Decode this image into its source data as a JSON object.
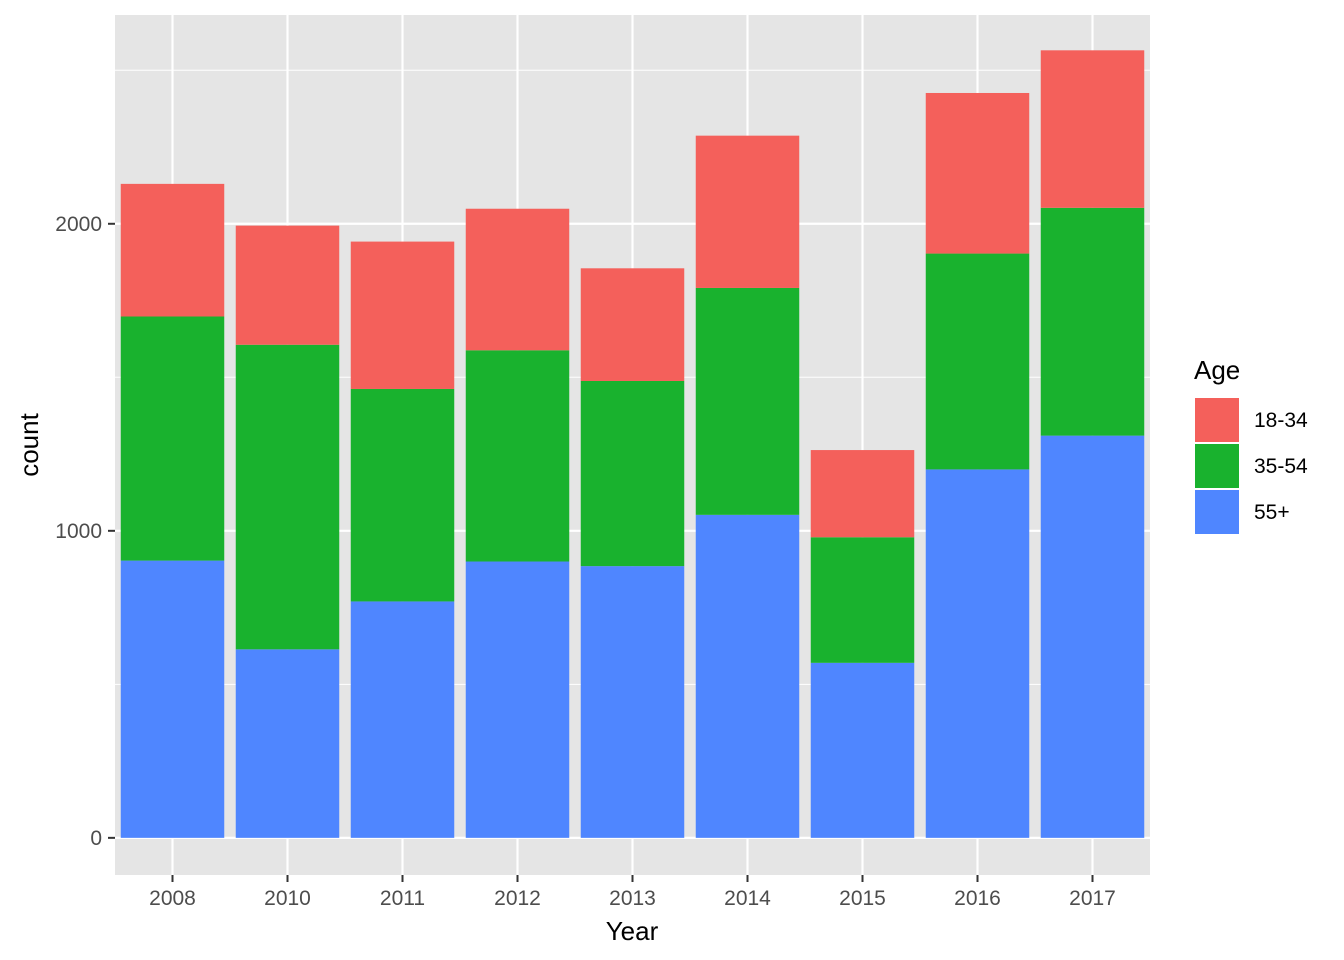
{
  "chart_data": {
    "type": "bar",
    "stacked": true,
    "xlabel": "Year",
    "ylabel": "count",
    "categories": [
      "2008",
      "2010",
      "2011",
      "2012",
      "2013",
      "2014",
      "2015",
      "2016",
      "2017"
    ],
    "series": [
      {
        "name": "55+",
        "color": "#4f86ff",
        "values": [
          903,
          614,
          770,
          900,
          885,
          1052,
          570,
          1200,
          1310
        ]
      },
      {
        "name": "35-54",
        "color": "#19b22e",
        "values": [
          795,
          992,
          692,
          688,
          603,
          739,
          409,
          703,
          742
        ]
      },
      {
        "name": "18-34",
        "color": "#f4605b",
        "values": [
          432,
          388,
          480,
          461,
          367,
          496,
          284,
          523,
          513
        ]
      }
    ],
    "ylim": [
      -121,
      2680
    ],
    "yticks": [
      0,
      1000,
      2000
    ],
    "grid": true,
    "panel_background": "#e5e5e5",
    "legend": {
      "title": "Age",
      "position": "right",
      "items": [
        {
          "label": "18-34",
          "color": "#f4605b"
        },
        {
          "label": "35-54",
          "color": "#19b22e"
        },
        {
          "label": "55+",
          "color": "#4f86ff"
        }
      ]
    }
  }
}
